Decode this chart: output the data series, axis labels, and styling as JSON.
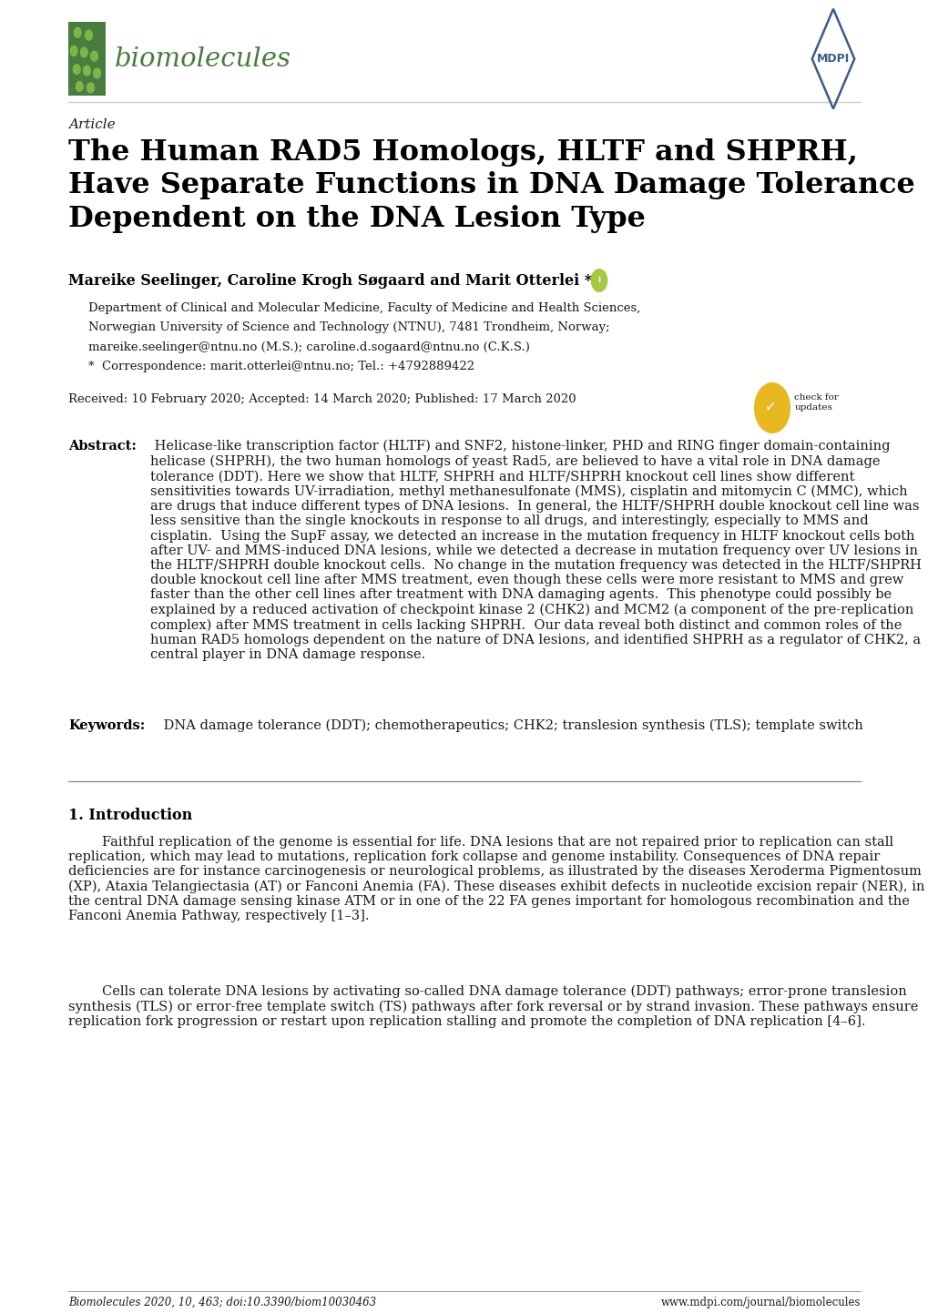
{
  "background_color": "#ffffff",
  "page_width": 10.2,
  "page_height": 14.42,
  "journal_name": "biomolecules",
  "article_label": "Article",
  "title": "The Human RAD5 Homologs, HLTF and SHPRH,\nHave Separate Functions in DNA Damage Tolerance\nDependent on the DNA Lesion Type",
  "authors": "Mareike Seelinger, Caroline Krogh Søgaard and Marit Otterlei *",
  "affiliation_line1": "Department of Clinical and Molecular Medicine, Faculty of Medicine and Health Sciences,",
  "affiliation_line2": "Norwegian University of Science and Technology (NTNU), 7481 Trondheim, Norway;",
  "affiliation_line3": "mareike.seelinger@ntnu.no (M.S.); caroline.d.sogaard@ntnu.no (C.K.S.)",
  "correspondence": "*  Correspondence: marit.otterlei@ntnu.no; Tel.: +4792889422",
  "received": "Received: 10 February 2020; Accepted: 14 March 2020; Published: 17 March 2020",
  "abstract_label": "Abstract:",
  "abstract_text": " Helicase-like transcription factor (HLTF) and SNF2, histone-linker, PHD and RING finger domain-containing helicase (SHPRH), the two human homologs of yeast Rad5, are believed to have a vital role in DNA damage tolerance (DDT). Here we show that HLTF, SHPRH and HLTF/SHPRH knockout cell lines show different sensitivities towards UV-irradiation, methyl methanesulfonate (MMS), cisplatin and mitomycin C (MMC), which are drugs that induce different types of DNA lesions.  In general, the HLTF/SHPRH double knockout cell line was less sensitive than the single knockouts in response to all drugs, and interestingly, especially to MMS and cisplatin.  Using the SupF assay, we detected an increase in the mutation frequency in HLTF knockout cells both after UV- and MMS-induced DNA lesions, while we detected a decrease in mutation frequency over UV lesions in the HLTF/SHPRH double knockout cells.  No change in the mutation frequency was detected in the HLTF/SHPRH double knockout cell line after MMS treatment, even though these cells were more resistant to MMS and grew faster than the other cell lines after treatment with DNA damaging agents.  This phenotype could possibly be explained by a reduced activation of checkpoint kinase 2 (CHK2) and MCM2 (a component of the pre-replication complex) after MMS treatment in cells lacking SHPRH.  Our data reveal both distinct and common roles of the human RAD5 homologs dependent on the nature of DNA lesions, and identified SHPRH as a regulator of CHK2, a central player in DNA damage response.",
  "keywords_label": "Keywords:",
  "keywords_text": " DNA damage tolerance (DDT); chemotherapeutics; CHK2; translesion synthesis (TLS); template switch",
  "section1_title": "1. Introduction",
  "section1_para1": "        Faithful replication of the genome is essential for life. DNA lesions that are not repaired prior to replication can stall replication, which may lead to mutations, replication fork collapse and genome instability. Consequences of DNA repair deficiencies are for instance carcinogenesis or neurological problems, as illustrated by the diseases Xeroderma Pigmentosum (XP), Ataxia Telangiectasia (AT) or Fanconi Anemia (FA). These diseases exhibit defects in nucleotide excision repair (NER), in the central DNA damage sensing kinase ATM or in one of the 22 FA genes important for homologous recombination and the Fanconi Anemia Pathway, respectively [1–3].",
  "section1_para2": "        Cells can tolerate DNA lesions by activating so-called DNA damage tolerance (DDT) pathways; error-prone translesion synthesis (TLS) or error-free template switch (TS) pathways after fork reversal or by strand invasion. These pathways ensure replication fork progression or restart upon replication stalling and promote the completion of DNA replication [4–6].",
  "footer_left": "Biomolecules 2020, 10, 463; doi:10.3390/biom10030463",
  "footer_right": "www.mdpi.com/journal/biomolecules",
  "green_color": "#4a7c3f",
  "title_color": "#000000",
  "text_color": "#1a1a1a",
  "mdpi_color": "#3d5a8a"
}
